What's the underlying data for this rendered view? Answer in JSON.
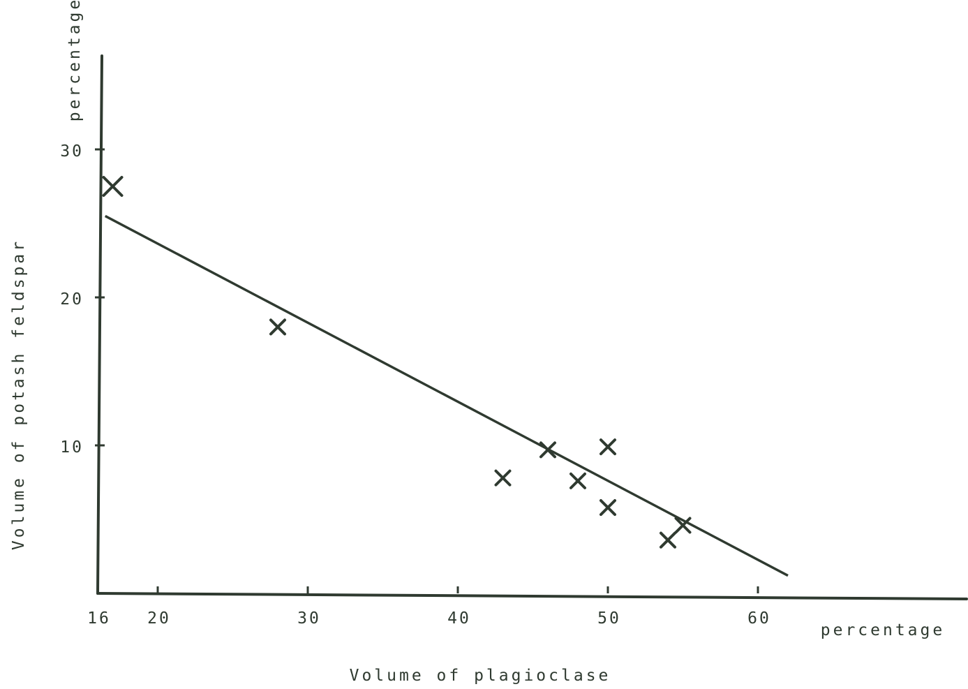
{
  "chart_data": {
    "type": "scatter",
    "title": "",
    "xlabel": "Volume of plagioclase",
    "x_unit": "percentage",
    "ylabel": "Volume of potash feldspar",
    "y_unit": "percentage",
    "xlim": [
      16,
      68
    ],
    "ylim": [
      0,
      36
    ],
    "x_ticks": [
      {
        "value": 16,
        "label": "16"
      },
      {
        "value": 20,
        "label": "20"
      },
      {
        "value": 30,
        "label": "30"
      },
      {
        "value": 40,
        "label": "40"
      },
      {
        "value": 50,
        "label": "50"
      },
      {
        "value": 60,
        "label": "60"
      }
    ],
    "y_ticks": [
      {
        "value": 10,
        "label": "10"
      },
      {
        "value": 20,
        "label": "20"
      },
      {
        "value": 30,
        "label": "30"
      }
    ],
    "grid": false,
    "legend": "none",
    "points": [
      {
        "x": 17,
        "y": 27.5
      },
      {
        "x": 28,
        "y": 18
      },
      {
        "x": 43,
        "y": 7.8
      },
      {
        "x": 46,
        "y": 9.7
      },
      {
        "x": 48,
        "y": 7.6
      },
      {
        "x": 50,
        "y": 9.9
      },
      {
        "x": 50,
        "y": 5.8
      },
      {
        "x": 54,
        "y": 3.6
      },
      {
        "x": 55,
        "y": 4.6
      }
    ],
    "trend_line": {
      "x": [
        16.5,
        62
      ],
      "y": [
        25.5,
        1.2
      ]
    },
    "colors": {
      "ink": "#2f3a30",
      "background": "#ffffff"
    }
  }
}
